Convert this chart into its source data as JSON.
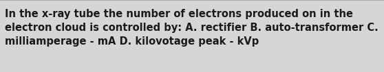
{
  "text": "In the x-ray tube the number of electrons produced on in the\nelectron cloud is controlled by: A. rectifier B. auto-transformer C.\nmilliamperage - mA D. kilovotage peak - kVp",
  "background_color": "#d6d6d6",
  "text_color": "#1a1a1a",
  "font_size": 10.5,
  "font_weight": "bold",
  "font_family": "DejaVu Sans",
  "top_line_color": "#aaaaaa",
  "fig_width": 5.58,
  "fig_height": 1.05
}
